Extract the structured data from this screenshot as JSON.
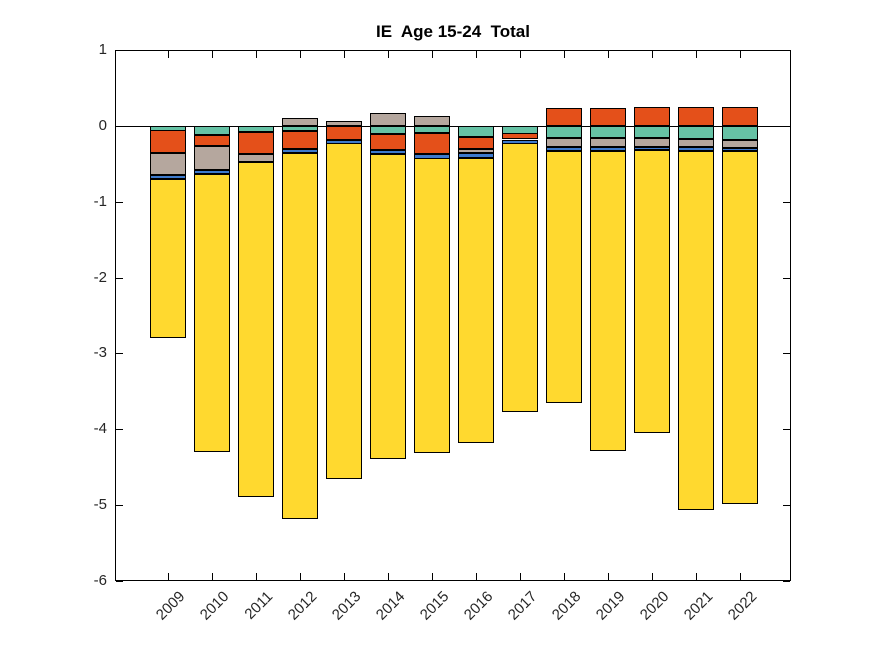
{
  "figure": {
    "title": "IE  Age 15-24  Total"
  },
  "chart_data": {
    "type": "bar",
    "stacked": true,
    "title": "IE  Age 15-24  Total",
    "xlabel": "",
    "ylabel": "",
    "grid": false,
    "legend": "none",
    "zero_line": true,
    "ylim": [
      -6,
      1
    ],
    "yticks": [
      1,
      0,
      -1,
      -2,
      -3,
      -4,
      -5,
      -6
    ],
    "ytick_labels": [
      "1",
      "0",
      "-1",
      "-2",
      "-3",
      "-4",
      "-5",
      "-6"
    ],
    "categories": [
      "2009",
      "2010",
      "2011",
      "2012",
      "2013",
      "2014",
      "2015",
      "2016",
      "2017",
      "2018",
      "2019",
      "2020",
      "2021",
      "2022"
    ],
    "series": [
      {
        "name": "teal-segment",
        "color": "#66C2A5",
        "values": [
          -0.06,
          -0.12,
          -0.08,
          -0.07,
          0.0,
          -0.11,
          -0.09,
          -0.15,
          -0.1,
          -0.16,
          -0.16,
          -0.16,
          -0.17,
          -0.18
        ]
      },
      {
        "name": "orange-segment",
        "color": "#E4501A",
        "values": [
          -0.3,
          -0.15,
          -0.29,
          -0.24,
          -0.18,
          -0.21,
          -0.28,
          -0.16,
          -0.08,
          0.24,
          0.24,
          0.25,
          0.25,
          0.25
        ]
      },
      {
        "name": "gray-segment",
        "color": "#B5A79E",
        "values": [
          -0.29,
          -0.31,
          -0.11,
          0.1,
          0.07,
          0.17,
          0.13,
          -0.05,
          0.0,
          -0.12,
          -0.12,
          -0.12,
          -0.11,
          -0.11
        ]
      },
      {
        "name": "blue-segment",
        "color": "#3E7ACC",
        "values": [
          -0.05,
          -0.05,
          0.0,
          -0.05,
          -0.05,
          -0.05,
          -0.06,
          -0.06,
          -0.05,
          -0.05,
          -0.05,
          -0.04,
          -0.05,
          -0.04
        ]
      },
      {
        "name": "yellow-segment",
        "color": "#FFD92F",
        "values": [
          -2.1,
          -3.66,
          -4.41,
          -4.82,
          -4.43,
          -4.02,
          -3.89,
          -3.76,
          -3.55,
          -3.32,
          -3.96,
          -3.73,
          -4.73,
          -4.65
        ]
      }
    ],
    "bar_totals_negative": [
      -2.8,
      -4.29,
      -4.89,
      -5.18,
      -4.66,
      -4.39,
      -4.32,
      -4.18,
      -3.78,
      -3.65,
      -4.29,
      -4.05,
      -5.06,
      -4.98
    ],
    "bar_totals_positive": [
      0.0,
      0.0,
      0.0,
      0.1,
      0.07,
      0.17,
      0.13,
      0.0,
      0.0,
      0.24,
      0.24,
      0.25,
      0.25,
      0.25
    ]
  }
}
